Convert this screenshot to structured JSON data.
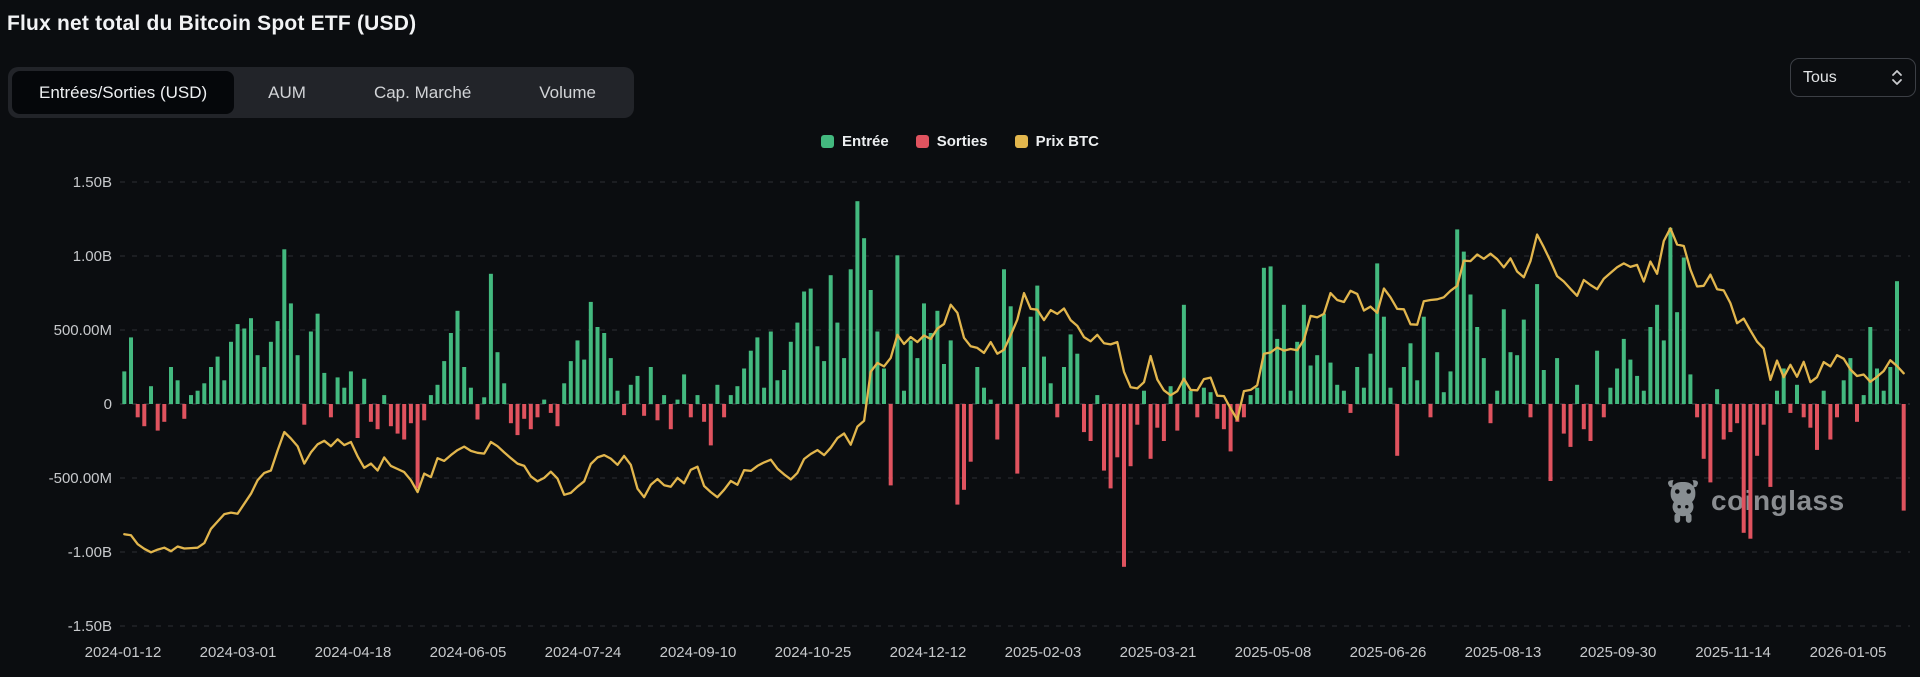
{
  "header": {
    "title": "Flux net total du Bitcoin Spot ETF (USD)"
  },
  "controls": {
    "tabs": [
      {
        "label": "Entrées/Sorties (USD)",
        "active": true
      },
      {
        "label": "AUM",
        "active": false
      },
      {
        "label": "Cap. Marché",
        "active": false
      },
      {
        "label": "Volume",
        "active": false
      }
    ],
    "range_select": {
      "value": "Tous"
    }
  },
  "legend": {
    "items": [
      {
        "label": "Entrée",
        "color": "#43b97f"
      },
      {
        "label": "Sorties",
        "color": "#e0535f"
      },
      {
        "label": "Prix BTC",
        "color": "#e2b64d"
      }
    ]
  },
  "watermark": {
    "brand": "coinglass"
  },
  "colors": {
    "background": "#0b0d10",
    "grid": "#45484e",
    "axis_text": "#c7c9cc"
  },
  "chart_data": {
    "type": "bar",
    "title": "Flux net total du Bitcoin Spot ETF (USD)",
    "unit": "USD",
    "grid": "horizontal dashed",
    "legend_position": "top center",
    "y_tick_labels": [
      "1.50B",
      "1.00B",
      "500.00M",
      "0",
      "-500.00M",
      "-1.00B",
      "-1.50B"
    ],
    "y_ticks_musd": [
      1500,
      1000,
      500,
      0,
      -500,
      -1000,
      -1500
    ],
    "ylim_musd": [
      -1500,
      1500
    ],
    "x_tick_labels": [
      "2024-01-12",
      "2024-03-01",
      "2024-04-18",
      "2024-06-05",
      "2024-07-24",
      "2024-09-10",
      "2024-10-25",
      "2024-12-12",
      "2025-02-03",
      "2025-03-21",
      "2025-05-08",
      "2025-06-26",
      "2025-08-13",
      "2025-09-30",
      "2025-11-14",
      "2026-01-05"
    ],
    "x_range_dates": [
      "2024-01-11",
      "2026-01-09"
    ],
    "sampling": "~2 trading days per point, left to right",
    "series": [
      {
        "name": "Entrée",
        "type": "bar",
        "color": "#43b97f",
        "source": "positive values of flows_musd"
      },
      {
        "name": "Sorties",
        "type": "bar",
        "color": "#e0535f",
        "source": "negative values of flows_musd"
      },
      {
        "name": "Prix BTC",
        "type": "line",
        "color": "#e2b64d",
        "overlay_range_kusd": [
          22.8,
          137.9
        ],
        "values_kusd": [
          46.6,
          46.3,
          44.0,
          42.8,
          41.9,
          42.6,
          43.1,
          42.2,
          43.4,
          42.9,
          43.0,
          43.1,
          44.3,
          48.0,
          49.9,
          51.8,
          52.2,
          51.9,
          54.5,
          57.1,
          60.6,
          62.5,
          63.1,
          68.3,
          73.1,
          71.4,
          69.4,
          64.9,
          67.8,
          69.9,
          70.8,
          69.4,
          71.2,
          69.7,
          70.5,
          66.8,
          63.8,
          64.9,
          63.1,
          66.5,
          64.3,
          63.5,
          62.7,
          60.6,
          57.5,
          62.3,
          61.4,
          66.3,
          65.6,
          67.1,
          68.4,
          69.3,
          68.2,
          67.7,
          67.5,
          70.5,
          69.4,
          67.8,
          66.3,
          64.9,
          64.3,
          61.6,
          60.3,
          61.2,
          62.8,
          61.0,
          56.8,
          57.3,
          58.9,
          60.3,
          64.8,
          66.5,
          67.1,
          66.2,
          64.6,
          66.9,
          64.6,
          58.4,
          56.2,
          59.4,
          60.9,
          59.3,
          58.9,
          61.2,
          59.8,
          63.3,
          64.1,
          59.1,
          57.5,
          56.2,
          58.1,
          60.4,
          59.4,
          63.2,
          63.0,
          64.3,
          65.2,
          65.9,
          63.6,
          62.1,
          60.8,
          62.5,
          66.1,
          67.4,
          68.4,
          67.1,
          69.0,
          71.5,
          72.7,
          69.8,
          74.5,
          76.0,
          88.7,
          91.0,
          90.1,
          92.3,
          98.3,
          95.9,
          97.7,
          96.4,
          98.1,
          97.2,
          99.9,
          101.1,
          106.1,
          104.0,
          97.5,
          95.3,
          94.9,
          93.6,
          96.4,
          93.4,
          94.4,
          98.2,
          102.2,
          109.1,
          105.0,
          104.8,
          102.1,
          104.7,
          103.7,
          105.1,
          102.1,
          100.6,
          97.7,
          96.6,
          98.3,
          96.1,
          95.8,
          96.4,
          88.7,
          84.7,
          84.4,
          86.0,
          92.8,
          86.7,
          83.9,
          82.6,
          83.7,
          86.9,
          84.0,
          83.9,
          86.8,
          87.2,
          82.5,
          82.4,
          79.2,
          76.3,
          83.7,
          84.0,
          85.2,
          93.4,
          93.7,
          95.0,
          94.2,
          94.6,
          94.3,
          97.0,
          103.2,
          102.8,
          103.7,
          109.1,
          107.3,
          106.8,
          109.7,
          108.9,
          104.6,
          105.6,
          104.0,
          110.3,
          108.0,
          105.0,
          104.9,
          101.0,
          100.9,
          107.0,
          107.3,
          107.5,
          108.0,
          109.7,
          111.0,
          117.5,
          117.4,
          119.1,
          118.0,
          119.3,
          117.9,
          115.8,
          118.1,
          114.7,
          113.2,
          117.4,
          124.3,
          121.0,
          117.4,
          113.5,
          112.1,
          110.2,
          108.4,
          112.5,
          111.2,
          110.1,
          112.8,
          114.3,
          115.8,
          116.8,
          115.9,
          116.4,
          112.1,
          117.3,
          114.1,
          122.6,
          125.9,
          121.7,
          121.3,
          115.2,
          110.8,
          111.0,
          113.9,
          110.1,
          109.8,
          106.5,
          101.3,
          102.5,
          99.4,
          96.5,
          94.7,
          86.6,
          91.6,
          87.3,
          90.5,
          87.4,
          91.3,
          86.0,
          87.3,
          91.2,
          90.1,
          93.0,
          92.1,
          89.3,
          87.6,
          88.0,
          86.1,
          87.4,
          88.9,
          91.7,
          90.2,
          88.3
        ]
      }
    ],
    "flows_musd": [
      220,
      450,
      -90,
      -150,
      120,
      -180,
      -120,
      250,
      160,
      -100,
      60,
      90,
      140,
      250,
      320,
      160,
      420,
      540,
      510,
      580,
      330,
      250,
      420,
      560,
      1045,
      680,
      330,
      -140,
      490,
      610,
      210,
      -90,
      180,
      110,
      220,
      -230,
      170,
      -120,
      -170,
      60,
      -150,
      -200,
      -240,
      -130,
      -570,
      -110,
      60,
      130,
      290,
      480,
      630,
      250,
      110,
      -105,
      45,
      880,
      350,
      140,
      -130,
      -210,
      -100,
      -170,
      -90,
      30,
      -60,
      -150,
      140,
      290,
      430,
      300,
      690,
      520,
      480,
      310,
      90,
      -75,
      130,
      190,
      -80,
      250,
      -110,
      60,
      -170,
      30,
      200,
      -90,
      60,
      -120,
      -280,
      130,
      -90,
      60,
      120,
      240,
      360,
      450,
      110,
      490,
      160,
      230,
      420,
      550,
      760,
      780,
      390,
      290,
      870,
      550,
      310,
      910,
      1370,
      1120,
      770,
      490,
      240,
      -550,
      1005,
      90,
      430,
      310,
      680,
      480,
      630,
      270,
      430,
      -680,
      -580,
      -390,
      250,
      110,
      30,
      -240,
      910,
      660,
      -470,
      250,
      590,
      800,
      320,
      140,
      -90,
      250,
      470,
      340,
      -190,
      -250,
      60,
      -450,
      -570,
      -360,
      -1100,
      -420,
      -140,
      90,
      -370,
      -160,
      -250,
      120,
      -180,
      670,
      90,
      -90,
      110,
      80,
      -100,
      -170,
      -320,
      -120,
      -90,
      60,
      110,
      920,
      930,
      440,
      670,
      90,
      420,
      670,
      260,
      330,
      610,
      280,
      130,
      90,
      -60,
      250,
      110,
      340,
      950,
      590,
      110,
      -350,
      250,
      410,
      160,
      590,
      -90,
      350,
      80,
      220,
      1180,
      1030,
      740,
      520,
      310,
      -130,
      90,
      640,
      350,
      330,
      570,
      -90,
      810,
      230,
      -520,
      310,
      -200,
      -290,
      130,
      -170,
      -250,
      360,
      -90,
      110,
      240,
      440,
      300,
      190,
      90,
      520,
      670,
      430,
      1190,
      620,
      990,
      200,
      -90,
      -370,
      -530,
      100,
      -240,
      -190,
      -130,
      -870,
      -910,
      -350,
      -140,
      -560,
      90,
      240,
      -60,
      130,
      -90,
      -160,
      -310,
      90,
      -240,
      -90,
      160,
      310,
      -120,
      60,
      520,
      240,
      90,
      250,
      830,
      -720
    ]
  }
}
